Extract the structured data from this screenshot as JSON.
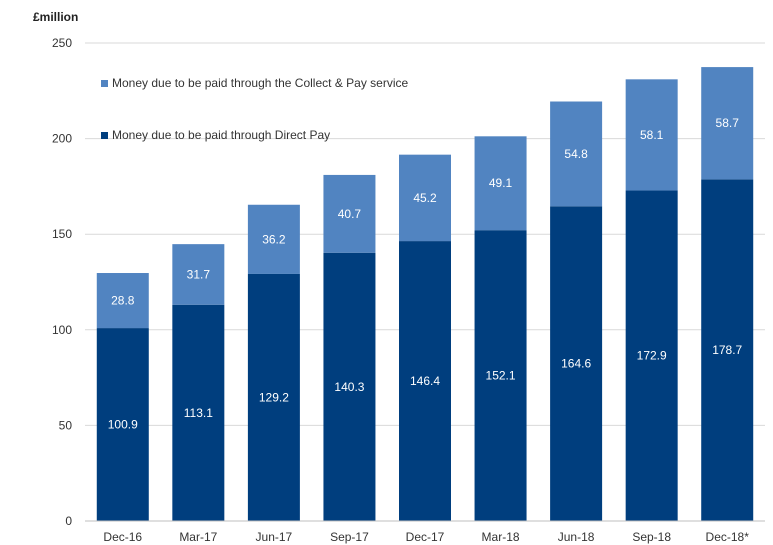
{
  "chart_data": {
    "type": "bar",
    "stacked": true,
    "title": "",
    "ylabel": "£million",
    "xlabel": "",
    "ylim": [
      0,
      250
    ],
    "yticks": [
      0,
      50,
      100,
      150,
      200,
      250
    ],
    "grid": true,
    "legend_position": "top-left",
    "categories": [
      "Dec-16",
      "Mar-17",
      "Jun-17",
      "Sep-17",
      "Dec-17",
      "Mar-18",
      "Jun-18",
      "Sep-18",
      "Dec-18*"
    ],
    "series": [
      {
        "name": "Money due to be paid through Direct Pay",
        "color": "#003e7e",
        "values": [
          100.9,
          113.1,
          129.2,
          140.3,
          146.4,
          152.1,
          164.6,
          172.9,
          178.7
        ]
      },
      {
        "name": "Money due to be paid through the Collect & Pay service",
        "color": "#5184c1",
        "values": [
          28.8,
          31.7,
          36.2,
          40.7,
          45.2,
          49.1,
          54.8,
          58.1,
          58.7
        ]
      }
    ]
  }
}
